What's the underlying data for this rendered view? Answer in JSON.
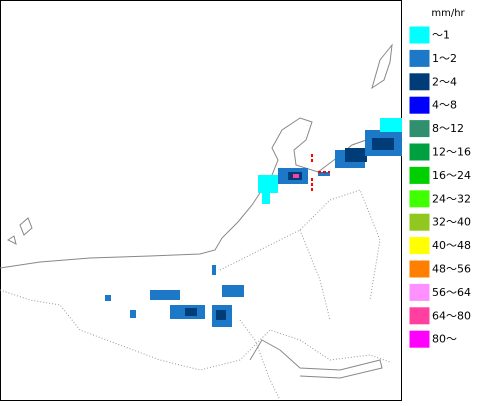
{
  "legend": {
    "title": "mm/hr",
    "items": [
      {
        "label": "～1",
        "color": "#00ffff"
      },
      {
        "label": "1～2",
        "color": "#1e78c8"
      },
      {
        "label": "2～4",
        "color": "#003c78"
      },
      {
        "label": "4～8",
        "color": "#0000ff"
      },
      {
        "label": "8～12",
        "color": "#2f8f6f"
      },
      {
        "label": "12～16",
        "color": "#00a040"
      },
      {
        "label": "16～24",
        "color": "#00d000"
      },
      {
        "label": "24～32",
        "color": "#40ff00"
      },
      {
        "label": "32～40",
        "color": "#90c820"
      },
      {
        "label": "40～48",
        "color": "#ffff00"
      },
      {
        "label": "48～56",
        "color": "#ff8000"
      },
      {
        "label": "56～64",
        "color": "#ff90ff"
      },
      {
        "label": "64～80",
        "color": "#ff40a0"
      },
      {
        "label": "80～",
        "color": "#ff00ff"
      }
    ]
  }
}
